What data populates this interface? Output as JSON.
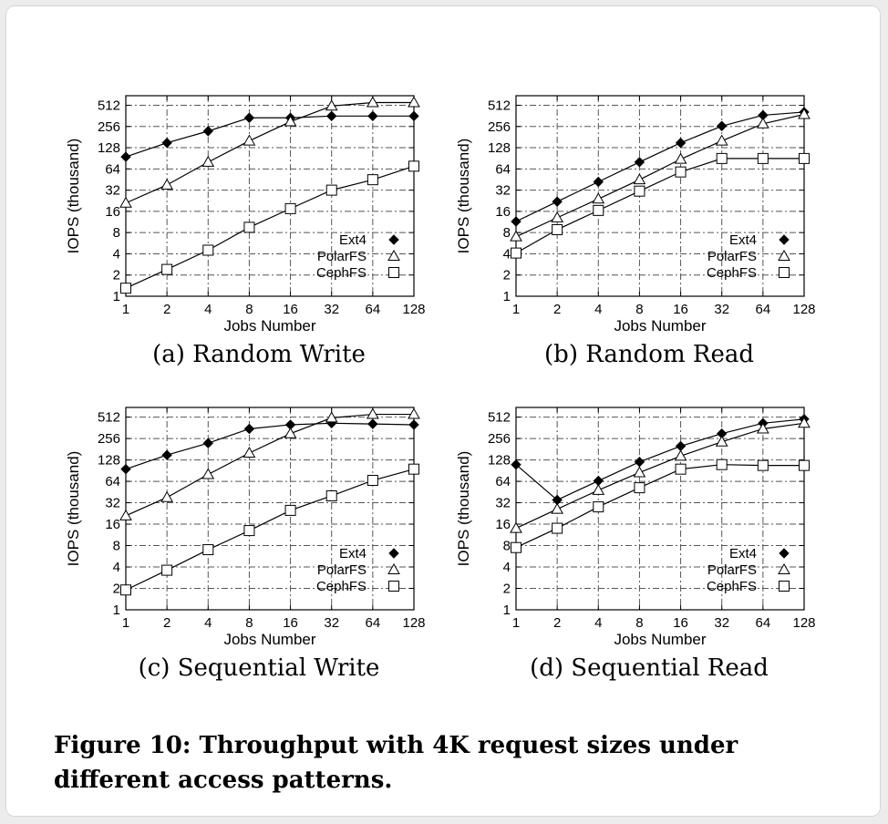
{
  "figure": {
    "caption": "Figure 10: Throughput with 4K request sizes under different access patterns."
  },
  "chart_data": [
    {
      "type": "line",
      "subcaption": "(a) Random Write",
      "xlabel": "Jobs Number",
      "ylabel": "IOPS (thousand)",
      "x": [
        1,
        2,
        4,
        8,
        16,
        32,
        64,
        128
      ],
      "x_ticks": [
        "1",
        "2",
        "4",
        "8",
        "16",
        "32",
        "64",
        "128"
      ],
      "y_ticks": [
        "1",
        "2",
        "4",
        "8",
        "16",
        "32",
        "64",
        "128",
        "256",
        "512"
      ],
      "x_scale": "log2",
      "y_scale": "log2",
      "ylim": [
        1,
        700
      ],
      "grid": true,
      "legend_position": "bottom-right",
      "series": [
        {
          "name": "Ext4",
          "marker": "filled-diamond",
          "values": [
            95,
            150,
            220,
            340,
            340,
            360,
            360,
            360
          ]
        },
        {
          "name": "PolarFS",
          "marker": "open-triangle",
          "values": [
            21,
            38,
            80,
            160,
            300,
            500,
            560,
            560
          ]
        },
        {
          "name": "CephFS",
          "marker": "open-square",
          "values": [
            1.3,
            2.4,
            4.5,
            9.5,
            17.5,
            32,
            45,
            70
          ]
        }
      ]
    },
    {
      "type": "line",
      "subcaption": "(b) Random Read",
      "xlabel": "Jobs Number",
      "ylabel": "IOPS (thousand)",
      "x": [
        1,
        2,
        4,
        8,
        16,
        32,
        64,
        128
      ],
      "x_ticks": [
        "1",
        "2",
        "4",
        "8",
        "16",
        "32",
        "64",
        "128"
      ],
      "y_ticks": [
        "1",
        "2",
        "4",
        "8",
        "16",
        "32",
        "64",
        "128",
        "256",
        "512"
      ],
      "x_scale": "log2",
      "y_scale": "log2",
      "ylim": [
        1,
        700
      ],
      "grid": true,
      "legend_position": "bottom-right",
      "series": [
        {
          "name": "Ext4",
          "marker": "filled-diamond",
          "values": [
            11.5,
            22,
            42,
            80,
            150,
            260,
            370,
            410
          ]
        },
        {
          "name": "PolarFS",
          "marker": "open-triangle",
          "values": [
            7,
            13,
            24,
            45,
            88,
            160,
            280,
            380
          ]
        },
        {
          "name": "CephFS",
          "marker": "open-square",
          "values": [
            4.1,
            8.8,
            16.5,
            31,
            58,
            90,
            90,
            90
          ]
        }
      ]
    },
    {
      "type": "line",
      "subcaption": "(c) Sequential Write",
      "xlabel": "Jobs Number",
      "ylabel": "IOPS (thousand)",
      "x": [
        1,
        2,
        4,
        8,
        16,
        32,
        64,
        128
      ],
      "x_ticks": [
        "1",
        "2",
        "4",
        "8",
        "16",
        "32",
        "64",
        "128"
      ],
      "y_ticks": [
        "1",
        "2",
        "4",
        "8",
        "16",
        "32",
        "64",
        "128",
        "256",
        "512"
      ],
      "x_scale": "log2",
      "y_scale": "log2",
      "ylim": [
        1,
        700
      ],
      "grid": true,
      "legend_position": "bottom-right",
      "series": [
        {
          "name": "Ext4",
          "marker": "filled-diamond",
          "values": [
            95,
            150,
            220,
            350,
            400,
            420,
            410,
            400
          ]
        },
        {
          "name": "PolarFS",
          "marker": "open-triangle",
          "values": [
            21,
            38,
            80,
            160,
            300,
            500,
            560,
            560
          ]
        },
        {
          "name": "CephFS",
          "marker": "open-square",
          "values": [
            1.9,
            3.6,
            7,
            13,
            25,
            40,
            66,
            95
          ]
        }
      ]
    },
    {
      "type": "line",
      "subcaption": "(d) Sequential Read",
      "xlabel": "Jobs Number",
      "ylabel": "IOPS (thousand)",
      "x": [
        1,
        2,
        4,
        8,
        16,
        32,
        64,
        128
      ],
      "x_ticks": [
        "1",
        "2",
        "4",
        "8",
        "16",
        "32",
        "64",
        "128"
      ],
      "y_ticks": [
        "1",
        "2",
        "4",
        "8",
        "16",
        "32",
        "64",
        "128",
        "256",
        "512"
      ],
      "x_scale": "log2",
      "y_scale": "log2",
      "ylim": [
        1,
        700
      ],
      "grid": true,
      "legend_position": "bottom-right",
      "series": [
        {
          "name": "Ext4",
          "marker": "filled-diamond",
          "values": [
            110,
            35,
            65,
            120,
            200,
            300,
            420,
            480
          ]
        },
        {
          "name": "PolarFS",
          "marker": "open-triangle",
          "values": [
            14,
            26,
            48,
            85,
            145,
            230,
            350,
            420
          ]
        },
        {
          "name": "CephFS",
          "marker": "open-square",
          "values": [
            7.5,
            14,
            28,
            52,
            95,
            110,
            107,
            107
          ]
        }
      ]
    }
  ]
}
